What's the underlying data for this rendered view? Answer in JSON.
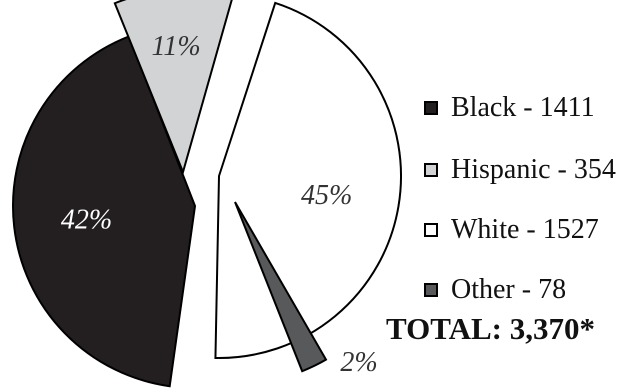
{
  "chart_data": {
    "type": "pie",
    "slices": [
      {
        "label": "Black",
        "value": 1411,
        "percent_label": "42%",
        "color": "#231f20",
        "text_color": "#ffffff"
      },
      {
        "label": "Hispanic",
        "value": 354,
        "percent_label": "11%",
        "color": "#d1d3d4",
        "text_color": "#333333"
      },
      {
        "label": "White",
        "value": 1527,
        "percent_label": "45%",
        "color": "#ffffff",
        "text_color": "#333333"
      },
      {
        "label": "Other",
        "value": 78,
        "percent_label": "2%",
        "color": "#58595b",
        "text_color": "#333333"
      }
    ],
    "legend": {
      "placement": "right",
      "items": [
        "Black - 1411",
        "Hispanic - 354",
        "White - 1527",
        "Other - 78"
      ]
    },
    "total_label": "TOTAL: 3,370*",
    "exploded": true
  }
}
